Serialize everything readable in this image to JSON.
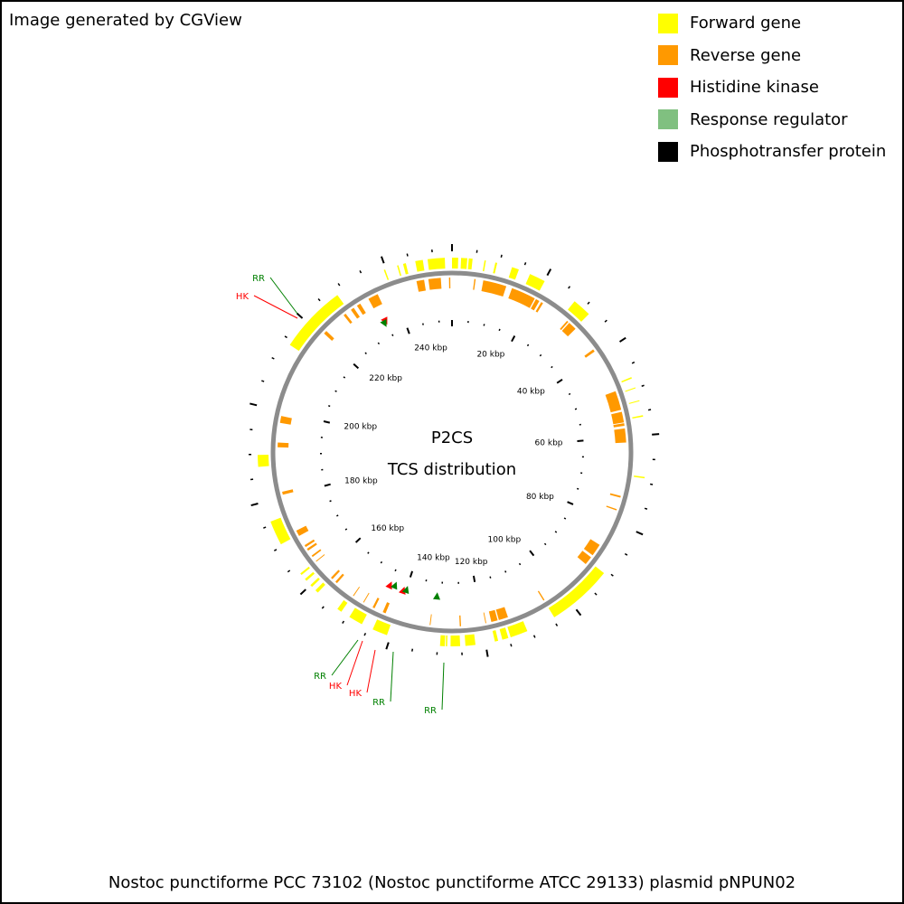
{
  "credit": "Image generated by CGView",
  "caption": "Nostoc punctiforme PCC 73102 (Nostoc punctiforme ATCC 29133) plasmid pNPUN02",
  "center": {
    "line1": "P2CS",
    "line2": "TCS distribution"
  },
  "legend": [
    {
      "label": "Forward gene",
      "color": "#ffff00"
    },
    {
      "label": "Reverse gene",
      "color": "#ff9900"
    },
    {
      "label": "Histidine kinase",
      "color": "#ff0000"
    },
    {
      "label": "Response regulator",
      "color": "#80c080"
    },
    {
      "label": "Phosphotransfer protein",
      "color": "#000000"
    }
  ],
  "genome": {
    "length_kbp": 254,
    "tick_labels_kbp": [
      20,
      40,
      60,
      80,
      100,
      120,
      140,
      160,
      180,
      200,
      220,
      240
    ],
    "tick_label_suffix": " kbp"
  },
  "forward_genes_kbp": [
    [
      0,
      1.3
    ],
    [
      1.9,
      3.2
    ],
    [
      3.5,
      4.3
    ],
    [
      6.8,
      7.1
    ],
    [
      9.1,
      9.5
    ],
    [
      12.7,
      14.2
    ],
    [
      16.7,
      20.1
    ],
    [
      27.6,
      31.6
    ],
    [
      47.5,
      47.8
    ],
    [
      49.8,
      50.0
    ],
    [
      52.6,
      52.8
    ],
    [
      55.8,
      56.1
    ],
    [
      68.7,
      69.0
    ],
    [
      90.7,
      104.6
    ],
    [
      110.9,
      114.6
    ],
    [
      115.1,
      116.4
    ],
    [
      117.3,
      118.0
    ],
    [
      122.1,
      124.2
    ],
    [
      125.3,
      127.3
    ],
    [
      128.0,
      128.3
    ],
    [
      128.5,
      129.5
    ],
    [
      140.8,
      144.0
    ],
    [
      146.5,
      149.5
    ],
    [
      151.5,
      152.5
    ],
    [
      157.8,
      158.5
    ],
    [
      159.5,
      160.0
    ],
    [
      161.2,
      161.7
    ],
    [
      162.8,
      163.2
    ],
    [
      170.5,
      175.7
    ],
    [
      187.4,
      189.9
    ],
    [
      214.1,
      228.5
    ],
    [
      239.5,
      239.8
    ],
    [
      242.4,
      242.7
    ],
    [
      243.7,
      244.3
    ],
    [
      246.3,
      247.9
    ],
    [
      248.9,
      252.5
    ]
  ],
  "reverse_genes_kbp": [
    [
      245.7,
      247.5
    ],
    [
      248.5,
      251.4
    ],
    [
      253.3,
      253.6
    ],
    [
      5.2,
      5.5
    ],
    [
      7.3,
      12.8
    ],
    [
      14.2,
      20.0
    ],
    [
      20.3,
      21.2
    ],
    [
      21.7,
      22.2
    ],
    [
      29.1,
      29.5
    ],
    [
      29.8,
      31.8
    ],
    [
      38.1,
      38.7
    ],
    [
      49.1,
      53.6
    ],
    [
      54.1,
      56.6
    ],
    [
      56.8,
      57.4
    ],
    [
      58.0,
      61.3
    ],
    [
      73.8,
      74.2
    ],
    [
      77.0,
      77.3
    ],
    [
      86.2,
      89.1
    ],
    [
      89.7,
      91.7
    ],
    [
      104.4,
      104.7
    ],
    [
      113.8,
      116.0
    ],
    [
      116.3,
      117.8
    ],
    [
      119.0,
      119.2
    ],
    [
      124.9,
      125.2
    ],
    [
      132.0,
      132.2
    ],
    [
      142.8,
      143.5
    ],
    [
      145.6,
      146.1
    ],
    [
      148.4,
      148.6
    ],
    [
      151.2,
      151.4
    ],
    [
      156.1,
      156.6
    ],
    [
      157.5,
      158.0
    ],
    [
      163.0,
      163.2
    ],
    [
      164.4,
      164.8
    ],
    [
      166.2,
      166.7
    ],
    [
      167.2,
      167.7
    ],
    [
      170.2,
      171.6
    ],
    [
      180.5,
      181.2
    ],
    [
      191.6,
      192.7
    ],
    [
      197.3,
      198.9
    ],
    [
      220.7,
      221.5
    ],
    [
      226.9,
      227.5
    ],
    [
      229.0,
      229.8
    ],
    [
      230.7,
      231.6
    ],
    [
      233.8,
      236.2
    ]
  ],
  "tcs_markers": [
    {
      "type": "HK",
      "position_kbp": 235.0
    },
    {
      "type": "RR",
      "position_kbp": 234.5
    },
    {
      "type": "HK",
      "position_kbp": 144.6
    },
    {
      "type": "RR",
      "position_kbp": 143.3
    },
    {
      "type": "HK",
      "position_kbp": 140.7
    },
    {
      "type": "RR",
      "position_kbp": 139.9
    },
    {
      "type": "RR",
      "position_kbp": 131.2
    }
  ],
  "callout_colors": {
    "HK": "#ff0000",
    "RR": "#008000"
  },
  "marker_colors": {
    "HK": "#ff0000",
    "RR": "#008000"
  },
  "callouts": [
    {
      "label": "RR",
      "type": "RR",
      "position_kbp": 234.5
    },
    {
      "label": "HK",
      "type": "HK",
      "position_kbp": 235.0
    },
    {
      "label": "RR",
      "type": "RR",
      "position_kbp": 148.6
    },
    {
      "label": "HK",
      "type": "HK",
      "position_kbp": 147.4
    },
    {
      "label": "HK",
      "type": "HK",
      "position_kbp": 142.9
    },
    {
      "label": "RR",
      "type": "RR",
      "position_kbp": 140.5
    },
    {
      "label": "RR",
      "type": "RR",
      "position_kbp": 131.0
    }
  ]
}
